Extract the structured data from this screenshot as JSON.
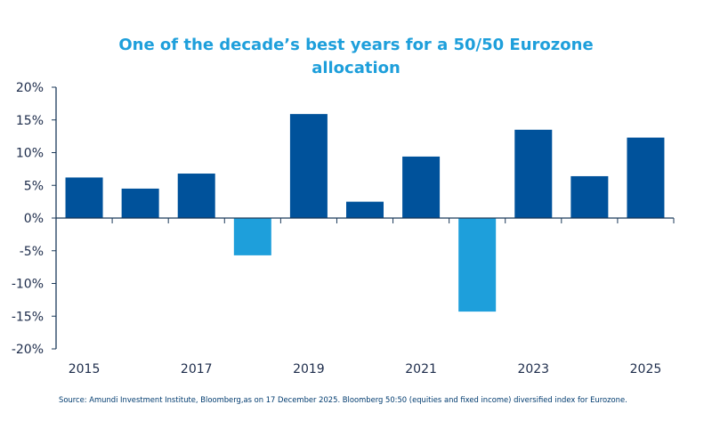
{
  "chart_data": {
    "type": "bar",
    "title": "One of the decade’s best years for a 50/50 Eurozone allocation",
    "categories": [
      "2015",
      "2016",
      "2017",
      "2018",
      "2019",
      "2020",
      "2021",
      "2022",
      "2023",
      "2024",
      "2025"
    ],
    "x_tick_labels": [
      "2015",
      "2017",
      "2019",
      "2021",
      "2023",
      "2025"
    ],
    "values": [
      6.2,
      4.5,
      6.8,
      -5.7,
      15.9,
      2.5,
      9.4,
      -14.3,
      13.5,
      6.4,
      12.3
    ],
    "ylim": [
      -20,
      20
    ],
    "y_ticks": [
      20,
      15,
      10,
      5,
      0,
      -5,
      -10,
      -15,
      -20
    ],
    "y_tick_format": "%",
    "xlabel": "",
    "ylabel": "",
    "grid": false,
    "legend": "none",
    "colors": {
      "positive": "#00529b",
      "negative": "#1e9fdb",
      "title": "#1e9fdb",
      "axis": "#1c3a5a"
    }
  },
  "source": "Source: Amundi Investment Institute,  Bloomberg,as  on 17 December 2025. Bloomberg 50:50  (equities and fixed income)  diversified index for Eurozone."
}
